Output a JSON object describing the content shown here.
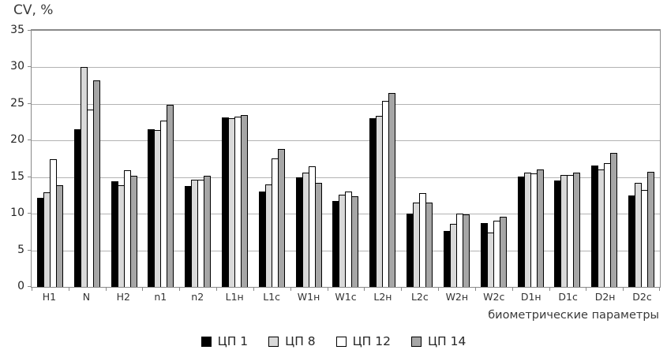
{
  "chart_data": {
    "type": "bar",
    "title": "",
    "ylabel": "CV, %",
    "xlabel": "биометрические параметры",
    "ylim": [
      0,
      35
    ],
    "yticks": [
      35,
      30,
      25,
      20,
      15,
      10,
      5,
      0
    ],
    "grid": true,
    "legend_position": "bottom",
    "categories": [
      "H1",
      "N",
      "H2",
      "n1",
      "n2",
      "L1н",
      "L1с",
      "W1н",
      "W1с",
      "L2н",
      "L2с",
      "W2н",
      "W2с",
      "D1н",
      "D1с",
      "D2н",
      "D2с"
    ],
    "series": [
      {
        "name": "ЦП 1",
        "color": "#000000",
        "values": [
          12.2,
          21.5,
          14.4,
          21.5,
          13.8,
          23.2,
          13.0,
          15.0,
          11.7,
          23.0,
          10.0,
          7.7,
          8.7,
          15.1,
          14.5,
          16.6,
          12.5
        ]
      },
      {
        "name": "ЦП 8",
        "color": "#d9d9d9",
        "values": [
          12.9,
          30.0,
          13.9,
          21.4,
          14.7,
          23.0,
          14.0,
          15.6,
          12.6,
          23.4,
          11.5,
          8.6,
          7.4,
          15.6,
          15.3,
          16.1,
          14.2
        ]
      },
      {
        "name": "ЦП 12",
        "color": "#ffffff",
        "values": [
          17.4,
          24.2,
          15.9,
          22.7,
          14.6,
          23.3,
          17.6,
          16.5,
          13.0,
          25.4,
          12.8,
          10.0,
          9.0,
          15.5,
          15.3,
          16.9,
          13.2
        ]
      },
      {
        "name": "ЦП 14",
        "color": "#a6a6a6",
        "values": [
          13.9,
          28.2,
          15.2,
          24.9,
          15.2,
          23.5,
          18.9,
          14.2,
          12.4,
          26.5,
          11.5,
          9.9,
          9.6,
          16.1,
          15.6,
          18.3,
          15.7
        ]
      }
    ],
    "bar_border_color": "#000000",
    "gridline_color": "#b3b3b3"
  }
}
